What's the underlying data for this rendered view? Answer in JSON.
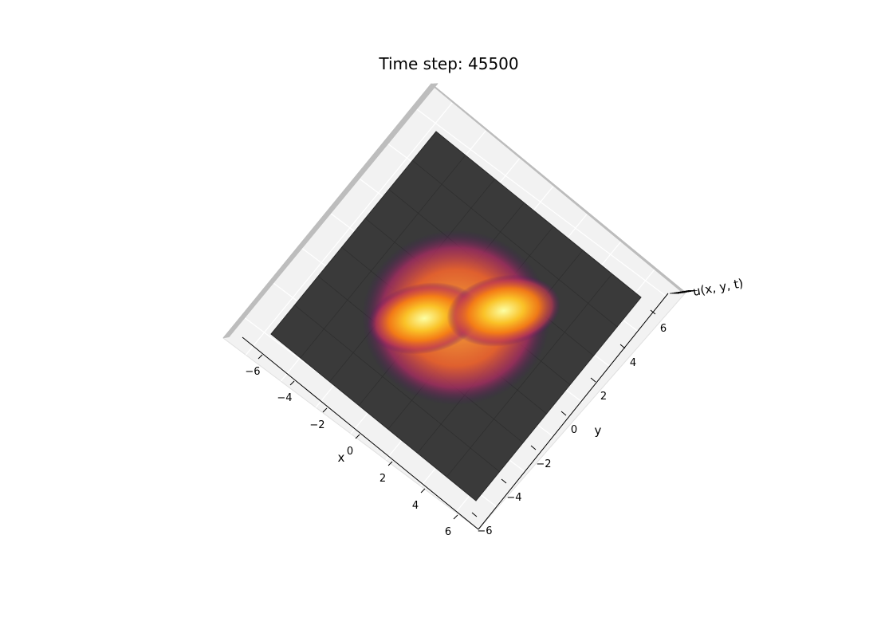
{
  "chart_data": {
    "type": "surface",
    "title": "Time step: 45500",
    "xlabel": "x",
    "ylabel": "y",
    "zlabel": "u(x, y, t)",
    "xlim": [
      -7,
      7
    ],
    "ylim": [
      -7,
      7
    ],
    "x_ticks": [
      -6,
      -4,
      -2,
      0,
      2,
      4,
      6
    ],
    "y_ticks": [
      -6,
      -4,
      -2,
      0,
      2,
      4,
      6
    ],
    "x_tick_labels": [
      "−6",
      "−4",
      "−2",
      "0",
      "2",
      "4",
      "6"
    ],
    "y_tick_labels": [
      "6",
      "4",
      "2",
      "0",
      "−2",
      "−4",
      "−6"
    ],
    "colormap": "inferno",
    "surface_base_color": "#3a3a3a",
    "peaks": [
      {
        "x": -1.5,
        "y": -1.5,
        "intensity": 1.0
      },
      {
        "x": 1.5,
        "y": 1.5,
        "intensity": 1.0
      }
    ],
    "blob_radius": 3.7,
    "grid": true
  }
}
